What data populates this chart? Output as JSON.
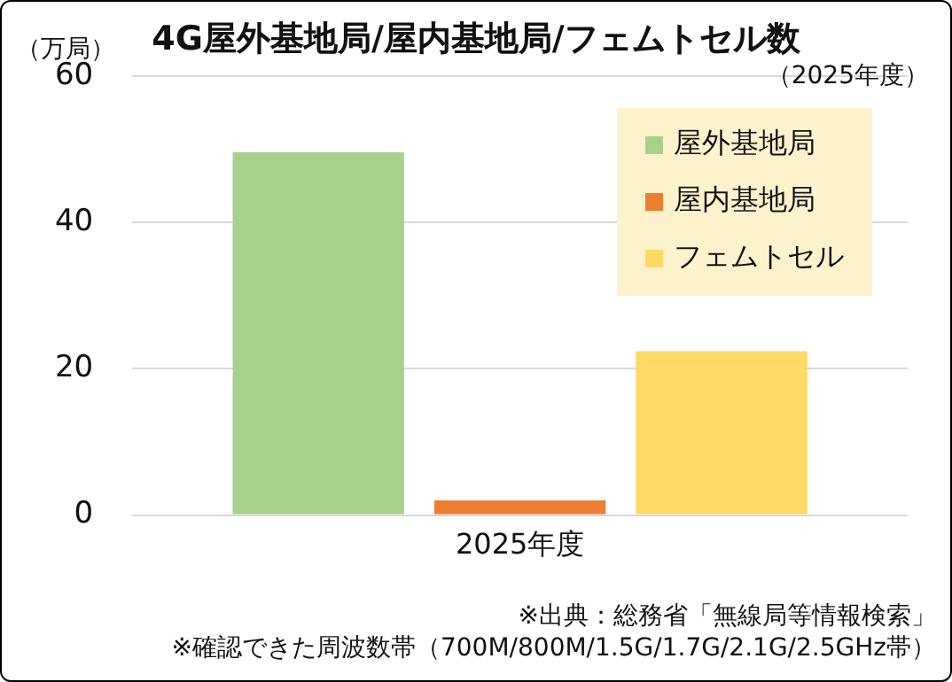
{
  "chart_data": {
    "type": "bar",
    "title": "4G屋外基地局/屋内基地局/フェムトセル数",
    "subtitle": "（2025年度）",
    "ylabel": "（万局）",
    "categories": [
      "2025年度"
    ],
    "series": [
      {
        "name": "屋外基地局",
        "color": "#a9d18e",
        "values": [
          49.6
        ]
      },
      {
        "name": "屋内基地局",
        "color": "#ed7d31",
        "values": [
          2.0
        ]
      },
      {
        "name": "フェムトセル",
        "color": "#ffd966",
        "values": [
          22.4
        ]
      }
    ],
    "ylim": [
      0,
      60
    ],
    "yticks": [
      0,
      20,
      40,
      60
    ],
    "grid": "y",
    "legend": "top right",
    "annotations": [
      "※出典：総務省「無線局等情報検索」",
      "※確認できた周波数帯（700M/800M/1.5G/1.7G/2.1G/2.5GHz帯）"
    ]
  }
}
